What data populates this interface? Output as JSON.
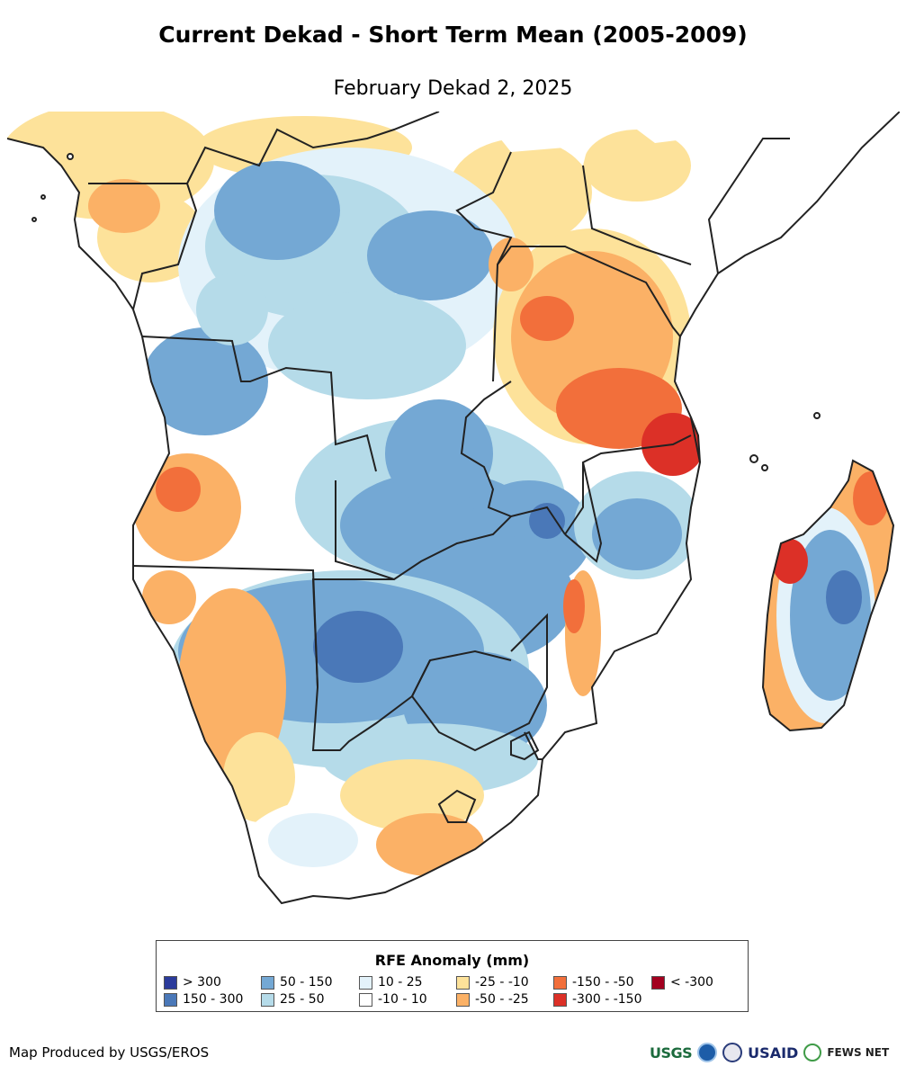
{
  "header": {
    "title": "Current Dekad - Short Term Mean (2005-2009)",
    "subtitle": "February Dekad 2, 2025"
  },
  "legend": {
    "title": "RFE Anomaly (mm)",
    "items": [
      {
        "label": "> 300",
        "color": "#2b3b9b"
      },
      {
        "label": "150 - 300",
        "color": "#4a78b8"
      },
      {
        "label": "50 - 150",
        "color": "#74a8d4"
      },
      {
        "label": "25 - 50",
        "color": "#b5dbe9"
      },
      {
        "label": "10 - 25",
        "color": "#e3f2fa"
      },
      {
        "label": "-10 - 10",
        "color": "#ffffff"
      },
      {
        "label": "-25 - -10",
        "color": "#fde29a"
      },
      {
        "label": "-50 - -25",
        "color": "#fbb166"
      },
      {
        "label": "-150 - -50",
        "color": "#f26f3b"
      },
      {
        "label": "-300 - -150",
        "color": "#dc3027"
      },
      {
        "label": "< -300",
        "color": "#a3001f"
      }
    ]
  },
  "footer": {
    "credit": "Map Produced by USGS/EROS",
    "logos": [
      {
        "text": "USGS",
        "icon": "usgs-logo-icon"
      },
      {
        "text": "",
        "icon": "noaa-logo-icon"
      },
      {
        "text": "",
        "icon": "commerce-seal-icon"
      },
      {
        "text": "USAID",
        "icon": "usaid-logo-icon"
      },
      {
        "text": "FEWS NET",
        "icon": "fewsnet-logo-icon"
      }
    ]
  }
}
